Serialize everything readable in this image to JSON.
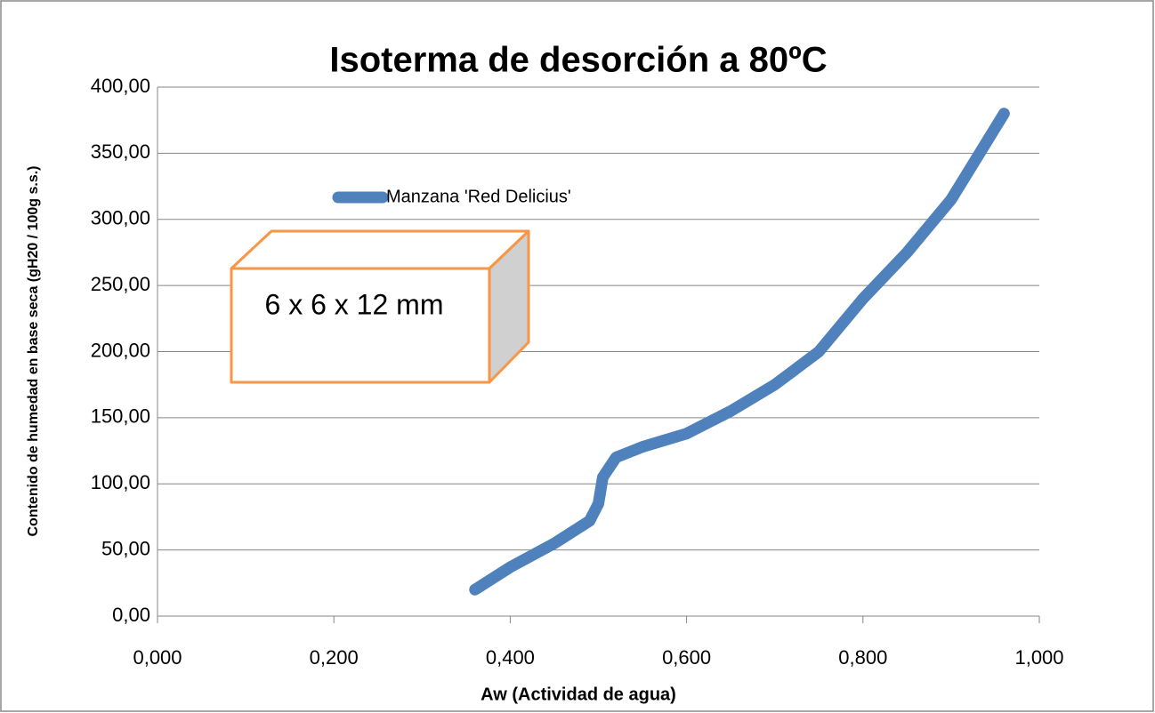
{
  "chart_data": {
    "type": "line",
    "title": "Isoterma de desorción a 80ºC",
    "x_label": "Aw (Actividad de agua)",
    "y_label": "Contenido de humedad en base seca (gH20 / 100g s.s.)",
    "annotation": "6 x 6 x 12 mm",
    "x": [
      0.36,
      0.4,
      0.45,
      0.49,
      0.5,
      0.505,
      0.52,
      0.55,
      0.6,
      0.65,
      0.7,
      0.75,
      0.8,
      0.85,
      0.9,
      0.96
    ],
    "series": [
      {
        "name": "Manzana 'Red Delicius'",
        "color": "#4f81bd",
        "values": [
          20,
          37,
          55,
          72,
          85,
          105,
          120,
          128,
          138,
          155,
          175,
          200,
          240,
          275,
          315,
          380
        ]
      }
    ],
    "xlim": [
      0,
      1
    ],
    "ylim": [
      0,
      400
    ],
    "xticks": [
      {
        "value": 0,
        "label": "0,000"
      },
      {
        "value": 0.2,
        "label": "0,200"
      },
      {
        "value": 0.4,
        "label": "0,400"
      },
      {
        "value": 0.6,
        "label": "0,600"
      },
      {
        "value": 0.8,
        "label": "0,800"
      },
      {
        "value": 1,
        "label": "1,000"
      }
    ],
    "yticks": [
      {
        "value": 0,
        "label": "0,00"
      },
      {
        "value": 50,
        "label": "50,00"
      },
      {
        "value": 100,
        "label": "100,00"
      },
      {
        "value": 150,
        "label": "150,00"
      },
      {
        "value": 200,
        "label": "200,00"
      },
      {
        "value": 250,
        "label": "250,00"
      },
      {
        "value": 300,
        "label": "300,00"
      },
      {
        "value": 350,
        "label": "350,00"
      },
      {
        "value": 400,
        "label": "400,00"
      }
    ],
    "grid": true,
    "legend": "upper left"
  }
}
